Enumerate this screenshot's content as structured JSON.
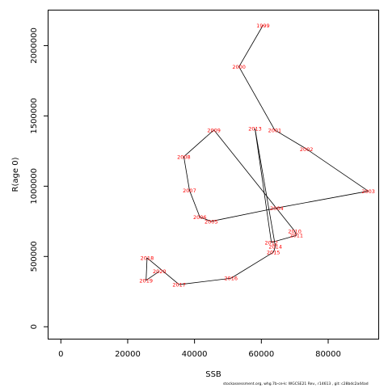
{
  "chart_data": {
    "type": "line",
    "xlabel": "SSB",
    "ylabel": "R(age 0)",
    "xlim": [
      -3700,
      95000
    ],
    "ylim": [
      -85000,
      2250000
    ],
    "x_ticks": [
      0,
      20000,
      40000,
      60000,
      80000
    ],
    "y_ticks": [
      0,
      500000,
      1000000,
      1500000,
      2000000
    ],
    "x_tick_labels": [
      "0",
      "20000",
      "40000",
      "60000",
      "80000"
    ],
    "y_tick_labels": [
      "0",
      "500000",
      "1000000",
      "1500000",
      "2000000"
    ],
    "grid": false,
    "line_color": "#000000",
    "label_color": "#ff0000",
    "points": [
      {
        "year": "1999",
        "ssb": 60500,
        "r": 2145000
      },
      {
        "year": "2000",
        "ssb": 53300,
        "r": 1850000
      },
      {
        "year": "2001",
        "ssb": 64000,
        "r": 1400000
      },
      {
        "year": "2002",
        "ssb": 73500,
        "r": 1265000
      },
      {
        "year": "2003",
        "ssb": 92000,
        "r": 965000
      },
      {
        "year": "2004",
        "ssb": 64600,
        "r": 845000
      },
      {
        "year": "2005",
        "ssb": 45000,
        "r": 750000
      },
      {
        "year": "2006",
        "ssb": 41600,
        "r": 780000
      },
      {
        "year": "2007",
        "ssb": 38500,
        "r": 970000
      },
      {
        "year": "2008",
        "ssb": 36800,
        "r": 1210000
      },
      {
        "year": "2009",
        "ssb": 45800,
        "r": 1400000
      },
      {
        "year": "2010",
        "ssb": 70000,
        "r": 680000
      },
      {
        "year": "2011",
        "ssb": 70500,
        "r": 650000
      },
      {
        "year": "2012",
        "ssb": 63000,
        "r": 600000
      },
      {
        "year": "2013",
        "ssb": 58100,
        "r": 1410000
      },
      {
        "year": "2014",
        "ssb": 64200,
        "r": 570000
      },
      {
        "year": "2015",
        "ssb": 63600,
        "r": 530000
      },
      {
        "year": "2016",
        "ssb": 50900,
        "r": 345000
      },
      {
        "year": "2017",
        "ssb": 35400,
        "r": 300000
      },
      {
        "year": "2018",
        "ssb": 25800,
        "r": 490000
      },
      {
        "year": "2019",
        "ssb": 25500,
        "r": 330000
      },
      {
        "year": "2020",
        "ssb": 29500,
        "r": 395000
      }
    ]
  },
  "footer": "stockassessment.org, whg.7b-ce-k: WGCSE21 Rev., r14613 ,  git: c28bdc2a44ad"
}
